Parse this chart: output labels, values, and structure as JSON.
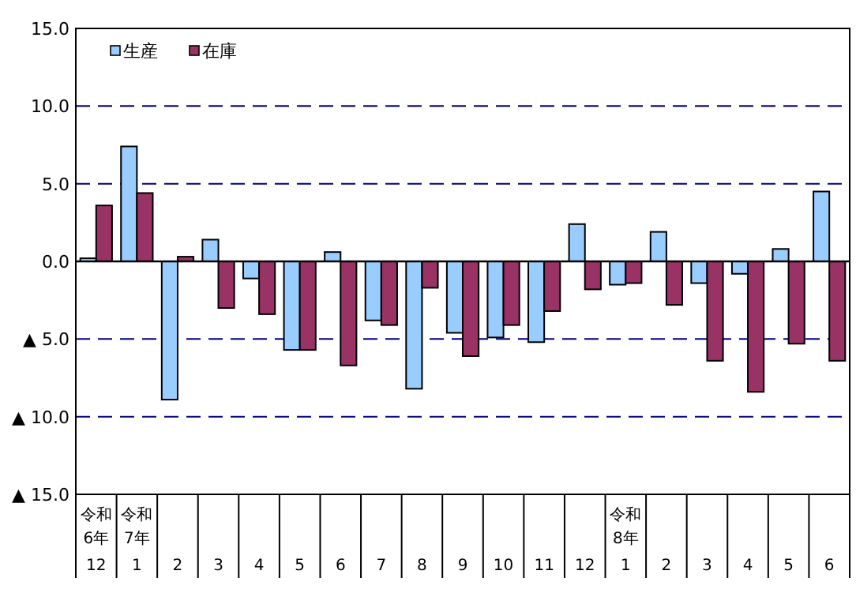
{
  "chart_data": {
    "type": "bar",
    "categories": [
      "令和\n6年\n12",
      "令和\n7年\n1",
      "2",
      "3",
      "4",
      "5",
      "6",
      "7",
      "8",
      "9",
      "10",
      "11",
      "12",
      "令和\n8年\n1",
      "2",
      "3",
      "4",
      "5",
      "6"
    ],
    "series": [
      {
        "name": "生産",
        "color": "#99ccff",
        "values": [
          0.2,
          7.4,
          -8.9,
          1.4,
          -1.1,
          -5.7,
          0.6,
          -3.8,
          -8.2,
          -4.6,
          -4.9,
          -5.2,
          2.4,
          -1.5,
          1.9,
          -1.4,
          -0.8,
          0.8,
          4.5
        ]
      },
      {
        "name": "在庫",
        "color": "#993366",
        "values": [
          3.6,
          4.4,
          0.3,
          -3.0,
          -3.4,
          -5.7,
          -6.7,
          -4.1,
          -1.7,
          -6.1,
          -4.1,
          -3.2,
          -1.8,
          -1.4,
          -2.8,
          -6.4,
          -8.4,
          -5.3,
          -6.4
        ]
      }
    ],
    "ylim": [
      -15,
      15
    ],
    "yticks": [
      {
        "value": -15,
        "label": "▲ 15.0"
      },
      {
        "value": -10,
        "label": "▲ 10.0"
      },
      {
        "value": -5,
        "label": "▲ 5.0"
      },
      {
        "value": 0,
        "label": "0.0"
      },
      {
        "value": 5,
        "label": "5.0"
      },
      {
        "value": 10,
        "label": "10.0"
      },
      {
        "value": 15,
        "label": "15.0"
      }
    ],
    "grid": "y",
    "legend": "top left"
  }
}
